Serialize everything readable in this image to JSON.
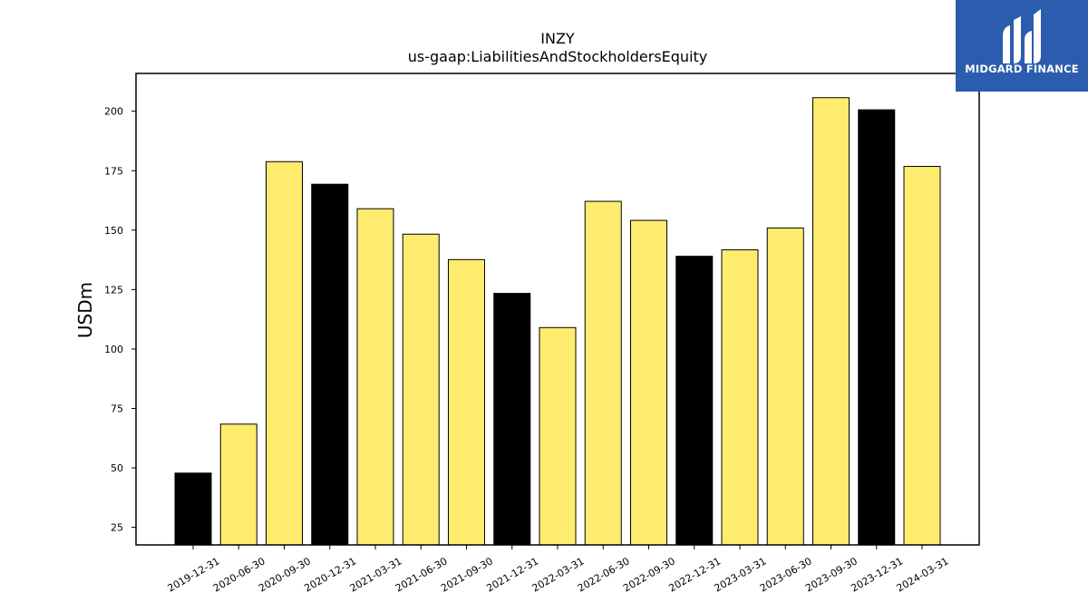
{
  "chart_data": {
    "type": "bar",
    "title": "INZY",
    "subtitle": "us-gaap:LiabilitiesAndStockholdersEquity",
    "ylabel": "USDm",
    "xlabel": "",
    "ylim": [
      17.6,
      215.9
    ],
    "yticks": [
      25,
      50,
      75,
      100,
      125,
      150,
      175,
      200
    ],
    "grid": false,
    "categories": [
      "2019-12-31",
      "2020-06-30",
      "2020-09-30",
      "2020-12-31",
      "2021-03-31",
      "2021-06-30",
      "2021-09-30",
      "2021-12-31",
      "2022-03-31",
      "2022-06-30",
      "2022-09-30",
      "2022-12-31",
      "2023-03-31",
      "2023-06-30",
      "2023-09-30",
      "2023-12-31",
      "2024-03-31"
    ],
    "values": [
      47.8,
      68.4,
      178.8,
      169.3,
      159.0,
      148.3,
      137.6,
      123.4,
      109.0,
      162.1,
      154.1,
      139.0,
      141.7,
      150.9,
      205.7,
      200.6,
      176.8
    ],
    "bar_colors": [
      "#000000",
      "#ffec6e",
      "#ffec6e",
      "#000000",
      "#ffec6e",
      "#ffec6e",
      "#ffec6e",
      "#000000",
      "#ffec6e",
      "#ffec6e",
      "#ffec6e",
      "#000000",
      "#ffec6e",
      "#ffec6e",
      "#ffec6e",
      "#000000",
      "#ffec6e"
    ]
  },
  "logo": {
    "text": "MIDGARD FINANCE",
    "background": "#2b5cad",
    "foreground": "#ffffff"
  }
}
